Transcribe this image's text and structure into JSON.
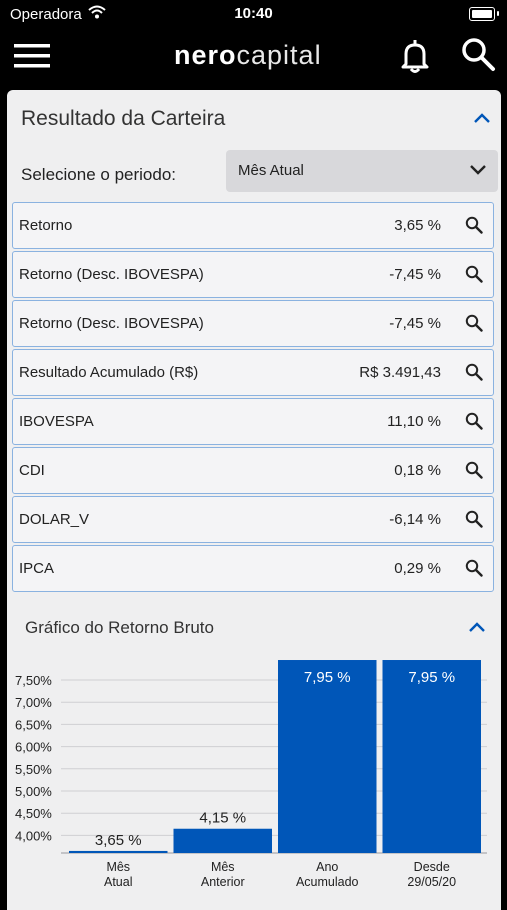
{
  "status_bar": {
    "carrier": "Operadora",
    "time": "10:40"
  },
  "header": {
    "logo_bold": "nero",
    "logo_light": "capital"
  },
  "portfolio": {
    "title": "Resultado da Carteira",
    "period_label": "Selecione o periodo:",
    "period_selected": "Mês Atual",
    "rows": [
      {
        "label": "Retorno",
        "value": "3,65 %"
      },
      {
        "label": "Retorno (Desc. IBOVESPA)",
        "value": "-7,45 %"
      },
      {
        "label": "Retorno (Desc. IBOVESPA)",
        "value": "-7,45 %"
      },
      {
        "label": "Resultado Acumulado (R$)",
        "value": "R$ 3.491,43"
      },
      {
        "label": "IBOVESPA",
        "value": "11,10 %"
      },
      {
        "label": "CDI",
        "value": "0,18 %"
      },
      {
        "label": "DOLAR_V",
        "value": "-6,14 %"
      },
      {
        "label": "IPCA",
        "value": "0,29 %"
      }
    ]
  },
  "chart_section": {
    "title": "Gráfico do Retorno Bruto"
  },
  "colors": {
    "accent": "#0056b8",
    "bar": "#0056b8",
    "navbar": "#000000"
  },
  "chart_data": {
    "type": "bar",
    "title": "Gráfico do Retorno Bruto",
    "categories": [
      [
        "Mês",
        "Atual"
      ],
      [
        "Mês",
        "Anterior"
      ],
      [
        "Ano",
        "Acumulado"
      ],
      [
        "Desde",
        "29/05/20"
      ]
    ],
    "values": [
      3.65,
      4.15,
      7.95,
      7.95
    ],
    "value_labels": [
      "3,65 %",
      "4,15 %",
      "7,95 %",
      "7,95 %"
    ],
    "y_ticks": [
      "7,50%",
      "7,00%",
      "6,50%",
      "6,00%",
      "5,50%",
      "5,00%",
      "4,50%",
      "4,00%"
    ],
    "ylim": [
      3.5,
      7.95
    ],
    "grid": true
  }
}
